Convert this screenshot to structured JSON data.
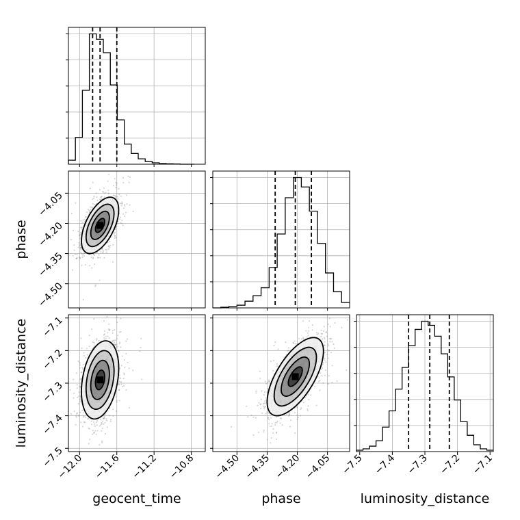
{
  "chart_data": {
    "type": "corner",
    "parameters": [
      {
        "name": "geocent_time",
        "range": [
          -12.12,
          -10.65
        ],
        "ticks": [
          -12.0,
          -11.6,
          -11.2,
          -10.8
        ],
        "tick_labels": [
          "−12.0",
          "−11.6",
          "−11.2",
          "−10.8"
        ],
        "hist_bin_edges": [
          -12.12,
          -12.045,
          -11.97,
          -11.895,
          -11.82,
          -11.745,
          -11.67,
          -11.595,
          -11.52,
          -11.445,
          -11.37,
          -11.295,
          -11.22,
          -11.145,
          -11.07,
          -10.995,
          -10.92,
          -10.845,
          -10.77
        ],
        "hist_counts": [
          0.03,
          0.2,
          0.55,
          0.97,
          0.93,
          0.83,
          0.59,
          0.33,
          0.15,
          0.08,
          0.04,
          0.02,
          0.01,
          0.005,
          0.003,
          0.002,
          0.0,
          0.0
        ],
        "quantiles": [
          -11.86,
          -11.78,
          -11.6
        ]
      },
      {
        "name": "phase",
        "range": [
          -4.62,
          -3.94
        ],
        "ticks": [
          -4.5,
          -4.35,
          -4.2,
          -4.05
        ],
        "tick_labels": [
          "−4.50",
          "−4.35",
          "−4.20",
          "−4.05"
        ],
        "hist_bin_edges": [
          -4.62,
          -4.58,
          -4.54,
          -4.5,
          -4.46,
          -4.42,
          -4.38,
          -4.34,
          -4.3,
          -4.26,
          -4.22,
          -4.18,
          -4.14,
          -4.1,
          -4.06,
          -4.02,
          -3.98,
          -3.94
        ],
        "hist_counts": [
          0.0,
          0.005,
          0.01,
          0.02,
          0.05,
          0.09,
          0.15,
          0.3,
          0.55,
          0.82,
          0.97,
          0.9,
          0.72,
          0.48,
          0.26,
          0.12,
          0.04
        ],
        "quantiles": [
          -4.31,
          -4.21,
          -4.13
        ]
      },
      {
        "name": "luminosity_distance",
        "range": [
          -7.51,
          -7.09
        ],
        "ticks": [
          -7.5,
          -7.4,
          -7.3,
          -7.2,
          -7.1
        ],
        "tick_labels": [
          "−7.5",
          "−7.4",
          "−7.3",
          "−7.2",
          "−7.1"
        ],
        "hist_bin_edges": [
          -7.51,
          -7.49,
          -7.47,
          -7.45,
          -7.43,
          -7.41,
          -7.39,
          -7.37,
          -7.35,
          -7.33,
          -7.31,
          -7.29,
          -7.27,
          -7.25,
          -7.23,
          -7.21,
          -7.19,
          -7.17,
          -7.15,
          -7.13,
          -7.11,
          -7.09
        ],
        "hist_counts": [
          0.01,
          0.02,
          0.04,
          0.08,
          0.18,
          0.3,
          0.46,
          0.62,
          0.78,
          0.9,
          0.96,
          0.93,
          0.85,
          0.72,
          0.55,
          0.38,
          0.22,
          0.12,
          0.05,
          0.02,
          0.01
        ],
        "quantiles": [
          -7.35,
          -7.285,
          -7.225
        ]
      }
    ],
    "pairs": [
      {
        "x": "geocent_time",
        "y": "phase",
        "mean": [
          -11.78,
          -4.21
        ],
        "std": [
          0.1,
          0.07
        ],
        "corr": 0.55,
        "contour_levels_sigma": [
          0.5,
          1.0,
          1.5,
          2.0
        ]
      },
      {
        "x": "geocent_time",
        "y": "luminosity_distance",
        "mean": [
          -11.78,
          -7.29
        ],
        "std": [
          0.1,
          0.06
        ],
        "corr": 0.3,
        "contour_levels_sigma": [
          0.5,
          1.0,
          1.5,
          2.0
        ]
      },
      {
        "x": "phase",
        "y": "luminosity_distance",
        "mean": [
          -4.21,
          -7.28
        ],
        "std": [
          0.07,
          0.06
        ],
        "corr": 0.65,
        "contour_levels_sigma": [
          0.5,
          1.0,
          1.5,
          2.0
        ]
      }
    ],
    "grid": true,
    "colors": {
      "points": "#888888",
      "density": "#000000",
      "lines": "#000000"
    }
  }
}
